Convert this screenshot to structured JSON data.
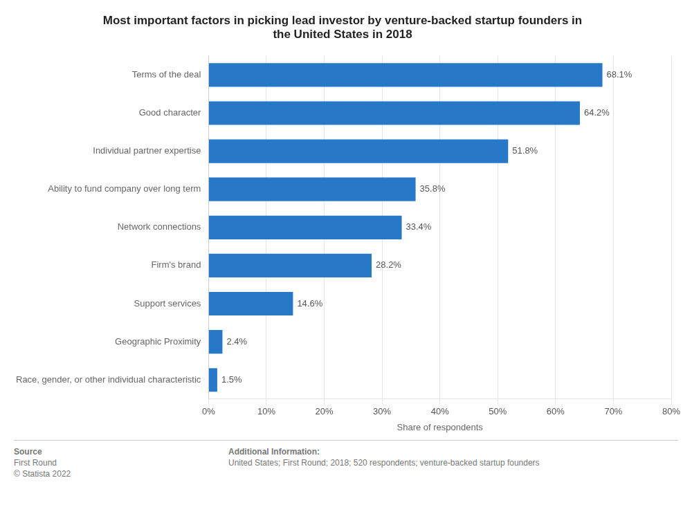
{
  "chart_data": {
    "type": "bar",
    "orientation": "horizontal",
    "title": "Most important factors in picking lead investor by venture-backed startup founders in\nthe United States in 2018",
    "categories": [
      "Race, gender, or other individual characteristic",
      "Geographic Proximity",
      "Support services",
      "Firm's brand",
      "Network connections",
      "Ability to fund company over long term",
      "Individual partner expertise",
      "Good character",
      "Terms of the deal"
    ],
    "values": [
      1.5,
      2.4,
      14.6,
      28.2,
      33.4,
      35.8,
      51.8,
      64.2,
      68.1
    ],
    "value_labels": [
      "1.5%",
      "2.4%",
      "14.6%",
      "28.2%",
      "33.4%",
      "35.8%",
      "51.8%",
      "64.2%",
      "68.1%"
    ],
    "data_labels": true,
    "color": "#2878c8",
    "xlabel": "Share of respondents",
    "xlim": [
      0,
      80
    ],
    "xticks": [
      {
        "value": 0,
        "label": "0%"
      },
      {
        "value": 10,
        "label": "10%"
      },
      {
        "value": 20,
        "label": "20%"
      },
      {
        "value": 30,
        "label": "30%"
      },
      {
        "value": 40,
        "label": "40%"
      },
      {
        "value": 50,
        "label": "50%"
      },
      {
        "value": 60,
        "label": "60%"
      },
      {
        "value": 70,
        "label": "70%"
      },
      {
        "value": 80,
        "label": "80%"
      }
    ],
    "grid": true,
    "annotations": [
      [
        "Source",
        "First Round",
        "© Statista 2022"
      ],
      [
        "Additional Information:",
        "United States; First Round; 2018; 520 respondents; venture-backed startup founders"
      ]
    ]
  }
}
